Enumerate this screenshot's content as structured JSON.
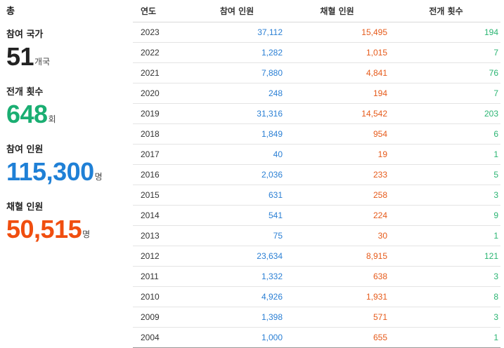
{
  "summary": {
    "heading": "총",
    "stats": [
      {
        "label": "참여 국가",
        "value": "51",
        "unit": "개국",
        "color": "#222222"
      },
      {
        "label": "전개 횟수",
        "value": "648",
        "unit": "회",
        "color": "#1aae72"
      },
      {
        "label": "참여 인원",
        "value": "115,300",
        "unit": "명",
        "color": "#1f80d6"
      },
      {
        "label": "채혈 인원",
        "value": "50,515",
        "unit": "명",
        "color": "#f04e0f"
      }
    ]
  },
  "table": {
    "headers": {
      "year": "연도",
      "participants": "참여 인원",
      "hired": "채혈 인원",
      "count": "전개 횟수"
    },
    "rows": [
      {
        "year": "2023",
        "participants": "37,112",
        "hired": "15,495",
        "count": "194"
      },
      {
        "year": "2022",
        "participants": "1,282",
        "hired": "1,015",
        "count": "7"
      },
      {
        "year": "2021",
        "participants": "7,880",
        "hired": "4,841",
        "count": "76"
      },
      {
        "year": "2020",
        "participants": "248",
        "hired": "194",
        "count": "7"
      },
      {
        "year": "2019",
        "participants": "31,316",
        "hired": "14,542",
        "count": "203"
      },
      {
        "year": "2018",
        "participants": "1,849",
        "hired": "954",
        "count": "6"
      },
      {
        "year": "2017",
        "participants": "40",
        "hired": "19",
        "count": "1"
      },
      {
        "year": "2016",
        "participants": "2,036",
        "hired": "233",
        "count": "5"
      },
      {
        "year": "2015",
        "participants": "631",
        "hired": "258",
        "count": "3"
      },
      {
        "year": "2014",
        "participants": "541",
        "hired": "224",
        "count": "9"
      },
      {
        "year": "2013",
        "participants": "75",
        "hired": "30",
        "count": "1"
      },
      {
        "year": "2012",
        "participants": "23,634",
        "hired": "8,915",
        "count": "121"
      },
      {
        "year": "2011",
        "participants": "1,332",
        "hired": "638",
        "count": "3"
      },
      {
        "year": "2010",
        "participants": "4,926",
        "hired": "1,931",
        "count": "8"
      },
      {
        "year": "2009",
        "participants": "1,398",
        "hired": "571",
        "count": "3"
      },
      {
        "year": "2004",
        "participants": "1,000",
        "hired": "655",
        "count": "1"
      }
    ]
  },
  "colors": {
    "participants": "#2a7fd4",
    "hired": "#e65a1a",
    "count": "#2bb573"
  }
}
